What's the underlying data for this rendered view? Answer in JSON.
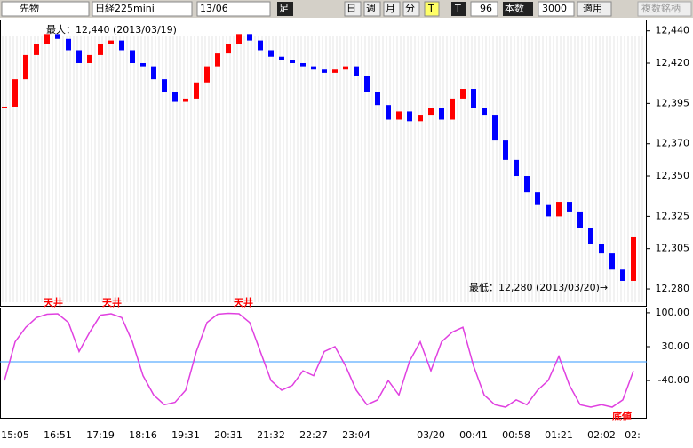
{
  "toolbar": {
    "product": "先物",
    "symbol": "日経225mini",
    "contract": "13/06",
    "bar_label": "足",
    "periods": [
      "日",
      "週",
      "月",
      "分"
    ],
    "t_button": "T",
    "t2_button": "T",
    "count": "96",
    "count_label": "本数",
    "bars": "3000",
    "apply": "適用",
    "multi": "複数銘柄"
  },
  "chart_data": [
    {
      "type": "candlestick",
      "annotations": [
        "最大：12,440 (2013/03/19)",
        "最低：12,280 (2013/03/20)→"
      ],
      "categories": [
        null,
        "15:05",
        null,
        null,
        null,
        "16:51",
        null,
        null,
        null,
        "17:19",
        null,
        null,
        null,
        "18:16",
        null,
        null,
        null,
        "19:31",
        null,
        null,
        null,
        "20:31",
        null,
        null,
        null,
        "21:32",
        null,
        null,
        null,
        "22:27",
        null,
        null,
        null,
        "23:04",
        null,
        null,
        null,
        null,
        null,
        null,
        "03/20",
        null,
        null,
        null,
        "00:41",
        null,
        null,
        null,
        "00:58",
        null,
        null,
        null,
        "01:21",
        null,
        null,
        null,
        "02:02",
        null,
        null,
        "02:"
      ],
      "values": [
        12393,
        12410,
        12425,
        12432,
        12438,
        12435,
        12428,
        12420,
        12425,
        12432,
        12434,
        12428,
        12420,
        12418,
        12410,
        12402,
        12396,
        12398,
        12408,
        12418,
        12426,
        12432,
        12438,
        12434,
        12428,
        12424,
        12422,
        12420,
        12418,
        12416,
        12414,
        12416,
        12418,
        12412,
        12402,
        12394,
        12385,
        12390,
        12384,
        12388,
        12392,
        12385,
        12398,
        12404,
        12392,
        12388,
        12372,
        12360,
        12350,
        12340,
        12332,
        12325,
        12334,
        12328,
        12318,
        12308,
        12302,
        12292,
        12285,
        12312
      ],
      "up_color": "#ff0000",
      "down_color": "#0000ff",
      "ylim": [
        12269,
        12447
      ],
      "yticks": [
        {
          "value": 12280,
          "label": "12,280"
        },
        {
          "value": 12305,
          "label": "12,305"
        },
        {
          "value": 12325,
          "label": "12,325"
        },
        {
          "value": 12350,
          "label": "12,350"
        },
        {
          "value": 12370,
          "label": "12,370"
        },
        {
          "value": 12395,
          "label": "12,395"
        },
        {
          "value": 12420,
          "label": "12,420"
        },
        {
          "value": 12440,
          "label": "12,440"
        }
      ]
    },
    {
      "type": "line",
      "annotations": [
        "天井",
        "天井",
        "天井",
        "底値"
      ],
      "values": [
        -40,
        40,
        70,
        90,
        97,
        98,
        80,
        20,
        60,
        95,
        98,
        90,
        40,
        -30,
        -70,
        -90,
        -85,
        -60,
        20,
        80,
        97,
        99,
        98,
        80,
        20,
        -40,
        -60,
        -50,
        -20,
        -30,
        20,
        30,
        -10,
        -60,
        -90,
        -80,
        -40,
        -70,
        0,
        40,
        -20,
        40,
        60,
        70,
        -10,
        -70,
        -90,
        -95,
        -80,
        -90,
        -60,
        -40,
        10,
        -50,
        -90,
        -95,
        -90,
        -95,
        -80,
        -20
      ],
      "color": "#e040e0",
      "ylim": [
        -117,
        109
      ],
      "yticks": [
        {
          "value": -40,
          "label": "-40.00"
        },
        {
          "value": 30,
          "label": "30.00"
        },
        {
          "value": 100,
          "label": "100.00"
        }
      ]
    }
  ]
}
